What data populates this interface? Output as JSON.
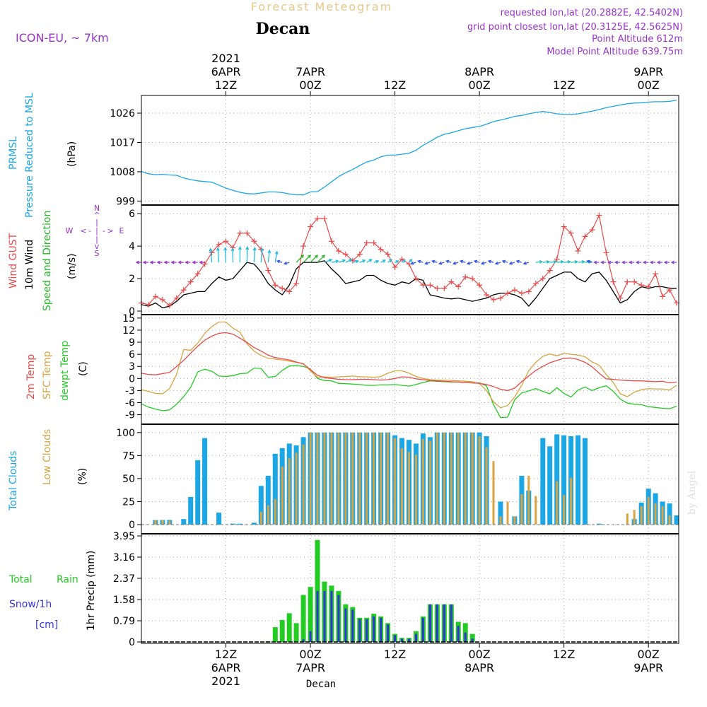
{
  "header": {
    "forecast_title": "Forecast Meteogram",
    "location": "Decan",
    "model": "ICON-EU, ~ 7km",
    "requested": "requested lon,lat (20.2882E, 42.5402N)",
    "grid_point": "grid point closest lon,lat (20.3125E, 42.5625N)",
    "point_altitude": "Point Altitude 612m",
    "model_altitude": "Model Point Altitude 639.75m"
  },
  "time_axis": {
    "top": [
      {
        "t": 12,
        "lines": [
          "2021",
          "6APR",
          "12Z"
        ]
      },
      {
        "t": 24,
        "lines": [
          "7APR",
          "00Z"
        ]
      },
      {
        "t": 36,
        "lines": [
          "12Z"
        ]
      },
      {
        "t": 48,
        "lines": [
          "8APR",
          "00Z"
        ]
      },
      {
        "t": 60,
        "lines": [
          "12Z"
        ]
      },
      {
        "t": 72,
        "lines": [
          "9APR",
          "00Z"
        ]
      }
    ],
    "bottom": [
      {
        "t": 12,
        "lines": [
          "12Z",
          "6APR",
          "2021"
        ]
      },
      {
        "t": 24,
        "lines": [
          "00Z",
          "7APR"
        ]
      },
      {
        "t": 36,
        "lines": [
          "12Z"
        ]
      },
      {
        "t": 48,
        "lines": [
          "00Z",
          "8APR"
        ]
      },
      {
        "t": 60,
        "lines": [
          "12Z"
        ]
      },
      {
        "t": 72,
        "lines": [
          "00Z",
          "9APR"
        ]
      }
    ],
    "footer_location": "Decan"
  },
  "watermark": "by Angel",
  "colors": {
    "pressure": "#1ba6e6",
    "gust": "#e84a4a",
    "wind": "#000000",
    "dir": "#22bb22",
    "temp": "#e84a4a",
    "sfc": "#d9a341",
    "dewpt": "#22cc22",
    "total_clouds": "#1ba6e6",
    "low_clouds": "#d9a341",
    "rain": "#22cc22",
    "snow": "#3333dd",
    "title": "#e8c88a",
    "info": "#9933cc",
    "grid": "#aaaaaa"
  },
  "chart_data": [
    {
      "type": "line",
      "id": "pressure",
      "title": "PRMSL Pressure Reduced to MSL",
      "legend": [
        "PRMSL",
        "Pressure Reduced to MSL"
      ],
      "ylabel": "(hPa)",
      "yticks": [
        "999",
        "1008",
        "1017",
        "1026"
      ],
      "ylim": [
        998,
        1031
      ],
      "x_hours": [
        0,
        1,
        2,
        3,
        4,
        5,
        6,
        7,
        8,
        9,
        10,
        11,
        12,
        13,
        14,
        15,
        16,
        17,
        18,
        19,
        20,
        21,
        22,
        23,
        24,
        25,
        26,
        27,
        28,
        29,
        30,
        31,
        32,
        33,
        34,
        35,
        36,
        37,
        38,
        39,
        40,
        41,
        42,
        43,
        44,
        45,
        46,
        47,
        48,
        49,
        50,
        51,
        52,
        53,
        54,
        55,
        56,
        57,
        58,
        59,
        60,
        61,
        62,
        63,
        64,
        65,
        66,
        67,
        68,
        69,
        70,
        71,
        72,
        73,
        74,
        75,
        76
      ],
      "values": [
        1008.1,
        1007.4,
        1007.1,
        1007.2,
        1007.0,
        1006.9,
        1006.1,
        1005.6,
        1005.2,
        1005.0,
        1004.8,
        1003.9,
        1003.0,
        1002.3,
        1001.7,
        1001.3,
        1001.2,
        1001.5,
        1001.8,
        1001.8,
        1001.6,
        1001.2,
        1000.9,
        1000.9,
        1001.8,
        1001.9,
        1003.3,
        1004.9,
        1006.5,
        1007.7,
        1008.7,
        1009.9,
        1011.0,
        1011.6,
        1012.6,
        1013.1,
        1013.1,
        1013.4,
        1013.7,
        1014.6,
        1016.1,
        1017.3,
        1018.6,
        1019.5,
        1020.0,
        1020.6,
        1021.2,
        1021.6,
        1021.9,
        1022.6,
        1023.4,
        1023.9,
        1024.4,
        1025.0,
        1025.3,
        1025.8,
        1026.2,
        1026.5,
        1026.2,
        1025.8,
        1025.6,
        1025.6,
        1025.8,
        1026.2,
        1026.6,
        1027.1,
        1027.7,
        1028.1,
        1028.5,
        1028.9,
        1029.1,
        1029.2,
        1029.4,
        1029.5,
        1029.5,
        1029.6,
        1030.0
      ]
    },
    {
      "type": "line",
      "id": "wind",
      "title": "Wind GUST, 10m Wind Speed and Direction",
      "legend": [
        "Wind GUST",
        "10m Wind",
        "Speed and Direction"
      ],
      "ylabel": "(m/s)",
      "yticks": [
        "0",
        "2",
        "4",
        "6"
      ],
      "ylim": [
        0,
        6.4
      ],
      "compass": [
        "N",
        "^",
        "|",
        "W",
        "<",
        "-",
        "|",
        "-",
        ">",
        "E",
        "|",
        "v",
        "S"
      ],
      "x_hours": [
        0,
        1,
        2,
        3,
        4,
        5,
        6,
        7,
        8,
        9,
        10,
        11,
        12,
        13,
        14,
        15,
        16,
        17,
        18,
        19,
        20,
        21,
        22,
        23,
        24,
        25,
        26,
        27,
        28,
        29,
        30,
        31,
        32,
        33,
        34,
        35,
        36,
        37,
        38,
        39,
        40,
        41,
        42,
        43,
        44,
        45,
        46,
        47,
        48,
        49,
        50,
        51,
        52,
        53,
        54,
        55,
        56,
        57,
        58,
        59,
        60,
        61,
        62,
        63,
        64,
        65,
        66,
        67,
        68,
        69,
        70,
        71,
        72,
        73,
        74,
        75,
        76
      ],
      "gust": [
        0.5,
        0.4,
        0.9,
        0.7,
        0.35,
        0.8,
        1.3,
        1.8,
        2.3,
        2.9,
        3.6,
        4.1,
        4.3,
        3.9,
        4.8,
        4.8,
        4.3,
        3.8,
        2.5,
        1.6,
        1.4,
        1.2,
        1.7,
        4.0,
        5.2,
        5.7,
        5.7,
        4.3,
        3.7,
        3.5,
        3.1,
        3.5,
        4.2,
        4.2,
        3.8,
        3.5,
        2.7,
        3.2,
        2.9,
        2.0,
        1.6,
        1.6,
        1.4,
        1.4,
        1.8,
        1.5,
        2.1,
        2.0,
        1.6,
        1.0,
        0.7,
        0.8,
        1.1,
        1.3,
        1.1,
        1.2,
        1.7,
        2.0,
        2.5,
        3.2,
        5.2,
        4.8,
        3.7,
        4.6,
        5.0,
        5.9,
        3.6,
        1.8,
        0.8,
        1.8,
        1.8,
        1.6,
        1.5,
        2.3,
        0.9,
        1.3,
        0.5
      ],
      "wind": [
        0.4,
        0.3,
        0.5,
        0.2,
        0.3,
        0.6,
        1.0,
        1.1,
        1.2,
        1.2,
        1.7,
        2.1,
        1.9,
        2.0,
        2.5,
        3.0,
        2.9,
        2.4,
        1.7,
        1.3,
        1.0,
        1.6,
        2.6,
        3.0,
        3.0,
        3.0,
        3.1,
        2.6,
        2.2,
        1.7,
        1.8,
        1.9,
        2.2,
        2.2,
        1.9,
        1.7,
        1.6,
        1.8,
        1.7,
        2.0,
        1.9,
        1.0,
        0.9,
        0.8,
        0.75,
        0.8,
        0.7,
        0.6,
        0.7,
        0.8,
        1.0,
        1.1,
        1.1,
        1.0,
        0.8,
        0.3,
        0.8,
        1.4,
        2.0,
        2.2,
        2.4,
        2.4,
        2.0,
        1.8,
        2.3,
        2.4,
        1.9,
        1.2,
        0.5,
        0.7,
        1.2,
        1.5,
        1.4,
        1.5,
        1.5,
        1.4,
        1.4
      ]
    },
    {
      "type": "line",
      "id": "temperature",
      "title": "2m Temp, SFC Temp, dewpt Temp",
      "legend": [
        "2m Temp",
        "SFC Temp",
        "dewpt Temp"
      ],
      "ylabel": "(C)",
      "yticks": [
        "-9",
        "-6",
        "-3",
        "0",
        "3",
        "6",
        "9",
        "12",
        "15"
      ],
      "ylim": [
        -11,
        15.5
      ],
      "x_hours": [
        0,
        1,
        2,
        3,
        4,
        5,
        6,
        7,
        8,
        9,
        10,
        11,
        12,
        13,
        14,
        15,
        16,
        17,
        18,
        19,
        20,
        21,
        22,
        23,
        24,
        25,
        26,
        27,
        28,
        29,
        30,
        31,
        32,
        33,
        34,
        35,
        36,
        37,
        38,
        39,
        40,
        41,
        42,
        43,
        44,
        45,
        46,
        47,
        48,
        49,
        50,
        51,
        52,
        53,
        54,
        55,
        56,
        57,
        58,
        59,
        60,
        61,
        62,
        63,
        64,
        65,
        66,
        67,
        68,
        69,
        70,
        71,
        72,
        73,
        74,
        75,
        76
      ],
      "t2m": [
        1.3,
        1.0,
        0.9,
        1.2,
        1.5,
        3.0,
        4.5,
        6.3,
        8.0,
        9.5,
        10.5,
        11.2,
        11.4,
        11.0,
        10.0,
        8.9,
        7.7,
        6.8,
        5.8,
        5.2,
        4.9,
        4.6,
        4.1,
        3.6,
        2.2,
        0.8,
        0.2,
        0.0,
        -0.2,
        -0.3,
        -0.3,
        -0.2,
        -0.2,
        -0.3,
        -0.4,
        -0.3,
        0.0,
        0.4,
        0.3,
        -0.1,
        -0.3,
        -0.5,
        -0.6,
        -0.7,
        -0.8,
        -0.9,
        -1.0,
        -1.1,
        -1.2,
        -1.5,
        -2.0,
        -2.7,
        -3.0,
        -2.4,
        -0.8,
        0.6,
        2.0,
        3.0,
        3.9,
        4.5,
        5.0,
        5.1,
        4.7,
        4.0,
        2.9,
        1.3,
        -0.1,
        -0.2,
        -0.4,
        -0.5,
        -0.6,
        -0.6,
        -0.7,
        -0.8,
        -0.7,
        -1.1,
        -0.9
      ],
      "sfc": [
        -2.8,
        -3.2,
        -3.7,
        -3.8,
        -2.5,
        1.0,
        7.2,
        7.0,
        8.8,
        11.2,
        12.9,
        14.0,
        14.0,
        12.5,
        11.5,
        8.6,
        6.8,
        5.7,
        5.0,
        4.8,
        4.6,
        4.3,
        4.0,
        3.7,
        1.9,
        0.3,
        0.4,
        0.3,
        0.4,
        0.5,
        0.6,
        0.4,
        0.4,
        0.3,
        0.5,
        1.3,
        1.9,
        1.9,
        1.3,
        0.5,
        0.0,
        -0.3,
        -0.4,
        -0.4,
        -0.5,
        -0.6,
        -0.7,
        -0.8,
        -1.3,
        -3.0,
        -5.8,
        -7.3,
        -6.7,
        -4.6,
        -1.7,
        1.9,
        4.0,
        5.5,
        6.1,
        5.6,
        6.3,
        6.0,
        5.8,
        5.4,
        4.1,
        3.3,
        1.0,
        -1.0,
        -3.8,
        -4.5,
        -3.4,
        -2.8,
        -2.5,
        -2.6,
        -2.6,
        -2.9,
        -1.7
      ],
      "dewpt": [
        -6.3,
        -7.1,
        -7.6,
        -8.0,
        -7.8,
        -6.4,
        -4.5,
        -2.2,
        1.6,
        2.3,
        1.8,
        0.6,
        0.5,
        0.7,
        1.2,
        1.3,
        2.6,
        2.5,
        0.3,
        0.5,
        2.0,
        3.1,
        3.2,
        3.0,
        2.3,
        0.0,
        -0.5,
        -0.6,
        -1.2,
        -1.3,
        -1.4,
        -1.5,
        -1.7,
        -1.7,
        -1.6,
        -1.6,
        -1.5,
        -1.7,
        -1.9,
        -1.5,
        -1.0,
        -0.6,
        -0.7,
        -0.8,
        -0.9,
        -0.9,
        -1.0,
        -1.1,
        -1.1,
        -1.8,
        -6.5,
        -9.7,
        -9.6,
        -5.3,
        -3.6,
        -3.1,
        -2.5,
        -3.2,
        -3.8,
        -2.3,
        -3.7,
        -4.6,
        -2.9,
        -2.1,
        -3.0,
        -2.3,
        -1.8,
        -3.2,
        -5.1,
        -6.1,
        -6.4,
        -6.5,
        -7.0,
        -7.2,
        -7.4,
        -7.5,
        -6.9
      ]
    },
    {
      "type": "bar",
      "id": "clouds",
      "title": "Total Clouds, Low Clouds",
      "legend": [
        "Total Clouds",
        "Low Clouds"
      ],
      "ylabel": "(%)",
      "yticks": [
        "0",
        "25",
        "50",
        "75",
        "100"
      ],
      "ylim": [
        0,
        106
      ],
      "x_hours": [
        0,
        1,
        2,
        3,
        4,
        5,
        6,
        7,
        8,
        9,
        10,
        11,
        12,
        13,
        14,
        15,
        16,
        17,
        18,
        19,
        20,
        21,
        22,
        23,
        24,
        25,
        26,
        27,
        28,
        29,
        30,
        31,
        32,
        33,
        34,
        35,
        36,
        37,
        38,
        39,
        40,
        41,
        42,
        43,
        44,
        45,
        46,
        47,
        48,
        49,
        50,
        51,
        52,
        53,
        54,
        55,
        56,
        57,
        58,
        59,
        60,
        61,
        62,
        63,
        64,
        65,
        66,
        67,
        68,
        69,
        70,
        71,
        72,
        73,
        74,
        75,
        76
      ],
      "total": [
        0,
        0,
        5,
        5,
        5,
        0,
        6,
        30,
        70,
        94,
        0,
        13,
        0,
        1,
        1,
        0,
        2,
        42,
        53,
        77,
        83,
        88,
        86,
        95,
        100,
        100,
        100,
        100,
        100,
        100,
        100,
        100,
        100,
        100,
        100,
        100,
        97,
        94,
        92,
        88,
        99,
        95,
        100,
        100,
        100,
        100,
        100,
        100,
        100,
        96,
        0,
        25,
        0,
        9,
        53,
        37,
        0,
        94,
        85,
        98,
        97,
        96,
        97,
        94,
        0,
        1,
        0,
        0,
        0,
        0,
        6,
        24,
        39,
        34,
        25,
        23,
        10
      ],
      "low": [
        0,
        0,
        5,
        5,
        4,
        0,
        0,
        0,
        0,
        0,
        0,
        0,
        0,
        0,
        0,
        0,
        0,
        14,
        21,
        28,
        63,
        72,
        78,
        87,
        100,
        100,
        100,
        100,
        100,
        100,
        100,
        100,
        100,
        100,
        100,
        100,
        94,
        83,
        79,
        76,
        93,
        91,
        100,
        100,
        100,
        100,
        100,
        100,
        96,
        84,
        69,
        9,
        25,
        9,
        33,
        53,
        31,
        0,
        0,
        47,
        32,
        51,
        0,
        0,
        0,
        0,
        0,
        0,
        0,
        12,
        16,
        20,
        30,
        23,
        20,
        10,
        0
      ]
    },
    {
      "type": "bar",
      "id": "precip",
      "title": "1hr Precip",
      "legend": [
        "Total",
        "Rain",
        "Snow/1h",
        "[cm]"
      ],
      "ylabel": "1hr Precip (mm)",
      "yticks": [
        "0",
        "0.79",
        "1.58",
        "2.37",
        "3.16",
        "3.95"
      ],
      "ylim": [
        0,
        3.95
      ],
      "x_hours": [
        0,
        1,
        2,
        3,
        4,
        5,
        6,
        7,
        8,
        9,
        10,
        11,
        12,
        13,
        14,
        15,
        16,
        17,
        18,
        19,
        20,
        21,
        22,
        23,
        24,
        25,
        26,
        27,
        28,
        29,
        30,
        31,
        32,
        33,
        34,
        35,
        36,
        37,
        38,
        39,
        40,
        41,
        42,
        43,
        44,
        45,
        46,
        47,
        48,
        49,
        50,
        51,
        52,
        53,
        54,
        55,
        56,
        57,
        58,
        59,
        60,
        61,
        62,
        63,
        64,
        65,
        66,
        67,
        68,
        69,
        70,
        71,
        72,
        73,
        74,
        75,
        76
      ],
      "total": [
        0,
        0,
        0,
        0,
        0,
        0,
        0,
        0,
        0,
        0,
        0,
        0,
        0,
        0,
        0,
        0,
        0,
        0,
        0.02,
        0.55,
        0.82,
        1.07,
        0.7,
        1.75,
        2.05,
        3.8,
        2.25,
        2.1,
        1.9,
        1.4,
        1.3,
        0.9,
        0.9,
        1.05,
        0.95,
        0.7,
        0.3,
        0.15,
        0.15,
        0.4,
        0.95,
        1.4,
        1.4,
        1.4,
        1.4,
        0.75,
        0.7,
        0.3,
        0,
        0,
        0,
        0,
        0,
        0,
        0,
        0,
        0,
        0,
        0,
        0,
        0,
        0,
        0,
        0,
        0,
        0,
        0,
        0,
        0,
        0,
        0,
        0,
        0,
        0,
        0,
        0,
        0
      ],
      "snow": [
        0,
        0,
        0,
        0,
        0,
        0,
        0,
        0,
        0,
        0,
        0,
        0,
        0,
        0,
        0,
        0,
        0,
        0,
        0,
        0,
        0,
        0,
        0,
        0.1,
        0.4,
        1.9,
        1.9,
        1.9,
        1.75,
        1.25,
        1.2,
        0.85,
        0.85,
        0.95,
        0.9,
        0.65,
        0.25,
        0.12,
        0.12,
        0.3,
        0.9,
        1.4,
        1.4,
        1.4,
        1.4,
        0.6,
        0.35,
        0.12,
        0,
        0,
        0,
        0,
        0,
        0,
        0,
        0,
        0,
        0,
        0,
        0,
        0,
        0,
        0,
        0,
        0,
        0,
        0,
        0,
        0,
        0,
        0,
        0,
        0,
        0,
        0,
        0,
        0
      ]
    }
  ]
}
